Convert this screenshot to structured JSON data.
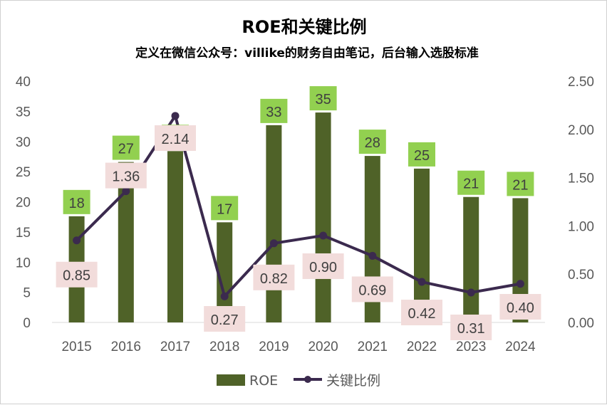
{
  "chart_data": {
    "type": "bar",
    "title": "ROE和关键比例",
    "subtitle": "定义在微信公众号：villike的财务自由笔记，后台输入选股标准",
    "categories": [
      "2015",
      "2016",
      "2017",
      "2018",
      "2019",
      "2020",
      "2021",
      "2022",
      "2023",
      "2024"
    ],
    "series": [
      {
        "name": "ROE",
        "type": "bar",
        "axis": "left",
        "color": "#4f6228",
        "values": [
          17.6,
          26.6,
          28.4,
          16.6,
          32.7,
          34.8,
          27.6,
          25.5,
          20.8,
          20.6
        ],
        "labels": [
          "18",
          "27",
          "",
          "17",
          "33",
          "35",
          "28",
          "25",
          "21",
          "21"
        ]
      },
      {
        "name": "关键比例",
        "type": "line",
        "axis": "right",
        "color": "#3b2a4e",
        "values": [
          0.85,
          1.36,
          2.14,
          0.27,
          0.82,
          0.9,
          0.69,
          0.42,
          0.31,
          0.4
        ],
        "labels": [
          "0.85",
          "1.36",
          "2.14",
          "0.27",
          "0.82",
          "0.90",
          "0.69",
          "0.42",
          "0.31",
          "0.40"
        ]
      }
    ],
    "y_left": {
      "min": 0,
      "max": 40,
      "ticks": [
        "0",
        "5",
        "10",
        "15",
        "20",
        "25",
        "30",
        "35",
        "40"
      ]
    },
    "y_right": {
      "min": 0,
      "max": 2.5,
      "ticks": [
        "0.00",
        "0.50",
        "1.00",
        "1.50",
        "2.00",
        "2.50"
      ]
    },
    "grid": false,
    "legend": "bottom",
    "bar_label_bg": "#92d050",
    "line_label_bg": "#f2dcdb"
  }
}
